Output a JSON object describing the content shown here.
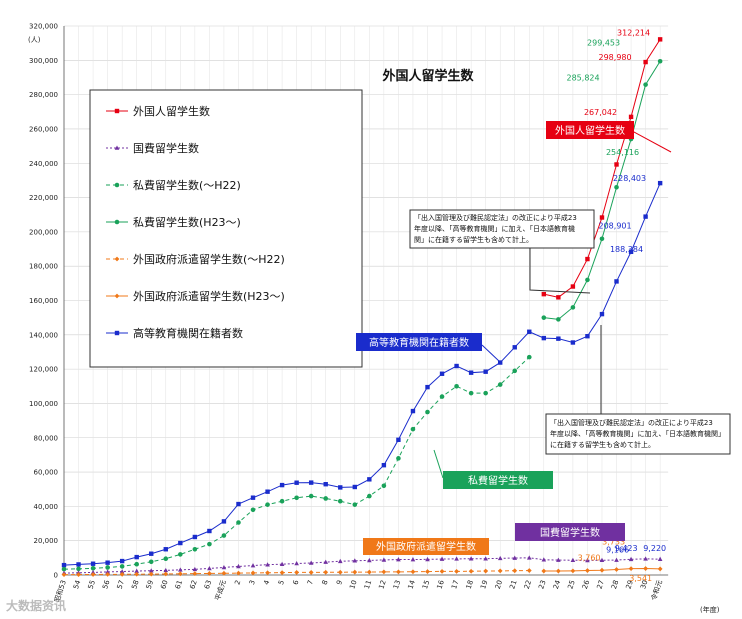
{
  "chart_data": {
    "type": "line",
    "title": "外国人留学生数",
    "ylabel": "(人)",
    "xlabel": "(年度)",
    "ylim": [
      0,
      320000
    ],
    "yticks": [
      "0",
      "20,000",
      "40,000",
      "60,000",
      "80,000",
      "100,000",
      "120,000",
      "140,000",
      "160,000",
      "180,000",
      "200,000",
      "220,000",
      "240,000",
      "260,000",
      "280,000",
      "300,000",
      "320,000"
    ],
    "x_labels": [
      "昭和53",
      "54",
      "55",
      "56",
      "57",
      "58",
      "59",
      "60",
      "61",
      "62",
      "63",
      "平成元",
      "2",
      "3",
      "4",
      "5",
      "6",
      "7",
      "8",
      "9",
      "10",
      "11",
      "12",
      "13",
      "14",
      "15",
      "16",
      "17",
      "18",
      "19",
      "20",
      "21",
      "22",
      "23",
      "24",
      "25",
      "26",
      "27",
      "28",
      "29",
      "30",
      "令和元"
    ],
    "legend": [
      {
        "name": "外国人留学生数",
        "color": "#e60012",
        "dash": "",
        "marker": "square"
      },
      {
        "name": "国費留学生数",
        "color": "#7030a0",
        "dash": "2,2",
        "marker": "triangle"
      },
      {
        "name": "私費留学生数(～H22)",
        "color": "#1aa25a",
        "dash": "4,3",
        "marker": "circle"
      },
      {
        "name": "私費留学生数(H23～)",
        "color": "#1aa25a",
        "dash": "",
        "marker": "circle"
      },
      {
        "name": "外国政府派遣留学生数(～H22)",
        "color": "#f07818",
        "dash": "4,3",
        "marker": "diamond"
      },
      {
        "name": "外国政府派遣留学生数(H23～)",
        "color": "#f07818",
        "dash": "",
        "marker": "diamond"
      },
      {
        "name": "高等教育機関在籍者数",
        "color": "#1a2ccc",
        "dash": "",
        "marker": "square"
      }
    ],
    "series": [
      {
        "name": "高等教育機関在籍者数",
        "start": 0,
        "values": [
          5755,
          6159,
          6572,
          7179,
          8116,
          10428,
          12410,
          15009,
          18631,
          22154,
          25643,
          31251,
          41347,
          45066,
          48561,
          52405,
          53787,
          53847,
          52921,
          51047,
          51298,
          55755,
          64011,
          78812,
          95550,
          109508,
          117302,
          121812,
          117927,
          118498,
          123829,
          132720,
          141774,
          138075,
          137756,
          135519,
          139185,
          152062,
          171122,
          188384,
          208901,
          228403
        ],
        "color": "#1a2ccc"
      },
      {
        "name": "私費留学生数(～H22)",
        "start": 0,
        "values": [
          3400,
          3600,
          3900,
          4400,
          5000,
          6300,
          7700,
          9500,
          12000,
          15000,
          18000,
          23000,
          30600,
          38000,
          41000,
          43000,
          45000,
          46000,
          44600,
          43000,
          41000,
          46000,
          52000,
          68000,
          85000,
          95000,
          104000,
          110000,
          106000,
          106000,
          111000,
          119000,
          127000
        ],
        "color": "#1aa25a"
      },
      {
        "name": "私費留学生数(H23～)",
        "start": 33,
        "values": [
          150000,
          149000,
          156000,
          172000,
          196000,
          226000,
          254116,
          285824,
          299453
        ],
        "color": "#1aa25a"
      },
      {
        "name": "国費留学生数",
        "start": 0,
        "values": [
          1100,
          1300,
          1500,
          1800,
          2000,
          2300,
          2500,
          2700,
          3000,
          3300,
          3800,
          4400,
          5000,
          5500,
          6000,
          6300,
          6700,
          7000,
          7500,
          8000,
          8300,
          8500,
          8800,
          9000,
          9000,
          9100,
          9300,
          9400,
          9500,
          9500,
          9700,
          9900,
          10000,
          8900,
          8700,
          8600,
          8500,
          8600,
          8700,
          9166,
          9423,
          9220
        ],
        "color": "#7030a0"
      },
      {
        "name": "外国政府派遣留学生数(～H22)",
        "start": 0,
        "values": [
          200,
          250,
          300,
          350,
          400,
          450,
          500,
          600,
          700,
          800,
          900,
          1000,
          1100,
          1200,
          1300,
          1400,
          1500,
          1500,
          1600,
          1600,
          1700,
          1700,
          1800,
          1800,
          1900,
          2000,
          2100,
          2100,
          2200,
          2300,
          2400,
          2500,
          2600
        ],
        "color": "#f07818"
      },
      {
        "name": "外国政府派遣留学生数(H23～)",
        "start": 33,
        "values": [
          2300,
          2300,
          2400,
          2600,
          2800,
          3200,
          3733,
          3760,
          3541
        ],
        "color": "#f07818"
      },
      {
        "name": "外国人留学生数",
        "start": 33,
        "values": [
          163697,
          161848,
          168145,
          184155,
          208379,
          239287,
          267042,
          298980,
          312214
        ],
        "color": "#e60012"
      }
    ],
    "data_labels": {
      "red": [
        "312,214",
        "298,980",
        "267,042"
      ],
      "green": [
        "299,453",
        "285,824",
        "254,116"
      ],
      "blue": [
        "228,403",
        "208,901",
        "188,384"
      ],
      "purple": [
        "9,423",
        "9,220",
        "9,166"
      ],
      "orange": [
        "3,733",
        "3,760",
        "3,541"
      ]
    },
    "callouts": {
      "red": "外国人留学生数",
      "blue": "高等教育機関在籍者数",
      "green": "私費留学生数",
      "purple": "国費留学生数",
      "orange": "外国政府派遣留学生数"
    },
    "notes": {
      "note1": [
        "「出入国管理及び難民認定法」の改正により平成23",
        "年度以降、「高等教育機関」に加え、「日本語教育機",
        "関」に在籍する留学生も含めて計上。"
      ],
      "note2": [
        "「出入国管理及び難民認定法」の改正により平成23",
        "年度以降、「高等教育機関」に加え、「日本語教育機関」",
        "に在籍する留学生も含めて計上。"
      ]
    }
  },
  "watermark": "大数据资讯"
}
